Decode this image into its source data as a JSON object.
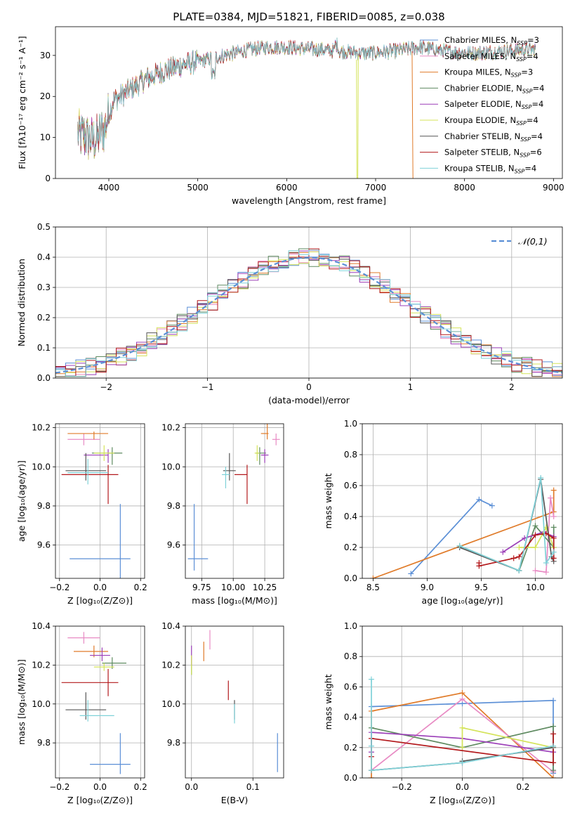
{
  "colors": {
    "Chabrier MILES": "#5b8fd6",
    "Salpeter MILES": "#e88bc4",
    "Kroupa MILES": "#e07b2a",
    "Chabrier ELODIE": "#5e8a60",
    "Salpeter ELODIE": "#9b3fb8",
    "Kroupa ELODIE": "#d4e35a",
    "Chabrier STELIB": "#555555",
    "Salpeter STELIB": "#b3191c",
    "Kroupa STELIB": "#7fd1d8"
  },
  "chart_data": [
    {
      "id": "spectrum",
      "type": "line",
      "title": "PLATE=0384, MJD=51821, FIBERID=0085, z=0.038",
      "xlabel": "wavelength [Angstrom, rest frame]",
      "ylabel": "Flux [fλ10⁻¹⁷ erg cm⁻² s⁻¹ A⁻¹]",
      "xlim": [
        3400,
        9100
      ],
      "ylim": [
        0,
        37
      ],
      "xticks": [
        4000,
        5000,
        6000,
        7000,
        8000,
        9000
      ],
      "yticks": [
        0,
        10,
        20,
        30
      ],
      "grid": false,
      "legend_position": "top-right",
      "legend": [
        "Chabrier MILES, N_SSP=3",
        "Salpeter MILES, N_SSP=4",
        "Kroupa MILES, N_SSP=3",
        "Chabrier ELODIE, N_SSP=4",
        "Salpeter ELODIE, N_SSP=4",
        "Kroupa ELODIE, N_SSP=4",
        "Chabrier STELIB, N_SSP=4",
        "Salpeter STELIB, N_SSP=6",
        "Kroupa STELIB, N_SSP=4"
      ],
      "continuum": [
        [
          3650,
          11
        ],
        [
          3750,
          10
        ],
        [
          3850,
          9.5
        ],
        [
          3950,
          12
        ],
        [
          4050,
          19
        ],
        [
          4200,
          21
        ],
        [
          4400,
          24
        ],
        [
          4600,
          26
        ],
        [
          4800,
          27.5
        ],
        [
          5000,
          28.5
        ],
        [
          5200,
          29.5
        ],
        [
          5400,
          30.5
        ],
        [
          5600,
          31.5
        ],
        [
          5800,
          32
        ],
        [
          6000,
          32
        ],
        [
          6300,
          31.5
        ],
        [
          6600,
          31
        ],
        [
          6900,
          30.5
        ],
        [
          7200,
          31
        ],
        [
          7500,
          32
        ],
        [
          7800,
          31
        ],
        [
          8100,
          30.5
        ],
        [
          8400,
          31
        ],
        [
          8800,
          31.5
        ]
      ]
    },
    {
      "id": "residuals",
      "type": "line",
      "xlabel": "(data-model)/error",
      "ylabel": "Normed distribution",
      "xlim": [
        -2.5,
        2.5
      ],
      "ylim": [
        0,
        0.5
      ],
      "xticks": [
        -2,
        -1,
        0,
        1,
        2
      ],
      "yticks": [
        0.0,
        0.1,
        0.2,
        0.3,
        0.4,
        0.5
      ],
      "grid": true,
      "legend_position": "top-right",
      "legend": [
        "𝒩(0,1)"
      ]
    },
    {
      "id": "age-vs-Z",
      "type": "scatter",
      "xlabel": "Z [log₁₀(Z/Z⊙)]",
      "ylabel": "age  [log₁₀(age/yr)]",
      "xlim": [
        -0.22,
        0.22
      ],
      "ylim": [
        9.43,
        10.22
      ],
      "xticks": [
        -0.2,
        0.0,
        0.2
      ],
      "yticks": [
        9.6,
        9.8,
        10.0,
        10.2
      ],
      "grid": true,
      "points": [
        {
          "model": "Chabrier MILES",
          "x": 0.1,
          "y": 9.53,
          "xerr": [
            0.25,
            0.05
          ],
          "yerr": [
            0.1,
            0.28
          ]
        },
        {
          "model": "Salpeter MILES",
          "x": -0.08,
          "y": 10.14,
          "xerr": [
            0.08,
            0.08
          ],
          "yerr": [
            0.03,
            0.03
          ]
        },
        {
          "model": "Kroupa MILES",
          "x": -0.03,
          "y": 10.17,
          "xerr": [
            0.13,
            0.07
          ],
          "yerr": [
            0.03,
            0.01
          ]
        },
        {
          "model": "Chabrier ELODIE",
          "x": 0.06,
          "y": 10.07,
          "xerr": [
            0.1,
            0.05
          ],
          "yerr": [
            0.06,
            0.03
          ]
        },
        {
          "model": "Salpeter ELODIE",
          "x": 0.04,
          "y": 10.06,
          "xerr": [
            0.12,
            0.0
          ],
          "yerr": [
            0.04,
            0.03
          ]
        },
        {
          "model": "Kroupa ELODIE",
          "x": 0.02,
          "y": 10.07,
          "xerr": [
            0.05,
            0.05
          ],
          "yerr": [
            0.04,
            0.04
          ]
        },
        {
          "model": "Chabrier STELIB",
          "x": -0.07,
          "y": 9.98,
          "xerr": [
            0.1,
            0.1
          ],
          "yerr": [
            0.05,
            0.09
          ]
        },
        {
          "model": "Salpeter STELIB",
          "x": 0.04,
          "y": 9.96,
          "xerr": [
            0.23,
            0.05
          ],
          "yerr": [
            0.15,
            0.05
          ]
        },
        {
          "model": "Kroupa STELIB",
          "x": -0.06,
          "y": 9.97,
          "xerr": [
            0.1,
            0.1
          ],
          "yerr": [
            0.06,
            0.07
          ]
        }
      ]
    },
    {
      "id": "age-vs-mass",
      "type": "scatter",
      "xlabel": "mass [log₁₀(M/M⊙)]",
      "ylabel": "",
      "xlim": [
        9.62,
        10.4
      ],
      "ylim": [
        9.43,
        10.22
      ],
      "xticks": [
        9.75,
        10.0,
        10.25
      ],
      "yticks": [
        9.6,
        9.8,
        10.0,
        10.2
      ],
      "grid": true,
      "points": [
        {
          "model": "Chabrier MILES",
          "x": 9.69,
          "y": 9.53,
          "xerr": [
            0.05,
            0.11
          ],
          "yerr": [
            0.06,
            0.28
          ]
        },
        {
          "model": "Salpeter MILES",
          "x": 10.34,
          "y": 10.14,
          "xerr": [
            0.03,
            0.03
          ],
          "yerr": [
            0.03,
            0.03
          ]
        },
        {
          "model": "Kroupa MILES",
          "x": 10.27,
          "y": 10.17,
          "xerr": [
            0.05,
            0.01
          ],
          "yerr": [
            0.03,
            0.1
          ]
        },
        {
          "model": "Chabrier ELODIE",
          "x": 10.21,
          "y": 10.07,
          "xerr": [
            0.03,
            0.05
          ],
          "yerr": [
            0.06,
            0.03
          ]
        },
        {
          "model": "Salpeter ELODIE",
          "x": 10.25,
          "y": 10.06,
          "xerr": [
            0.03,
            0.03
          ],
          "yerr": [
            0.04,
            0.03
          ]
        },
        {
          "model": "Kroupa ELODIE",
          "x": 10.19,
          "y": 10.07,
          "xerr": [
            0.02,
            0.02
          ],
          "yerr": [
            0.04,
            0.04
          ]
        },
        {
          "model": "Chabrier STELIB",
          "x": 9.97,
          "y": 9.98,
          "xerr": [
            0.05,
            0.05
          ],
          "yerr": [
            0.05,
            0.09
          ]
        },
        {
          "model": "Salpeter STELIB",
          "x": 10.11,
          "y": 9.96,
          "xerr": [
            0.1,
            0.0
          ],
          "yerr": [
            0.15,
            0.05
          ]
        },
        {
          "model": "Kroupa STELIB",
          "x": 9.94,
          "y": 9.96,
          "xerr": [
            0.03,
            0.03
          ],
          "yerr": [
            0.07,
            0.04
          ]
        }
      ]
    },
    {
      "id": "massweight-vs-age",
      "type": "line",
      "xlabel": "age  [log₁₀(age/yr)]",
      "ylabel": "mass weight",
      "xlim": [
        8.4,
        10.25
      ],
      "ylim": [
        0,
        1
      ],
      "xticks": [
        8.5,
        9.0,
        9.5,
        10.0
      ],
      "yticks": [
        0.0,
        0.2,
        0.4,
        0.6,
        0.8,
        1.0
      ],
      "grid": true,
      "series": [
        {
          "model": "Chabrier MILES",
          "x": [
            8.85,
            9.48,
            9.6
          ],
          "y": [
            0.03,
            0.51,
            0.47
          ]
        },
        {
          "model": "Kroupa MILES",
          "x": [
            8.5,
            10.17,
            10.17
          ],
          "y": [
            0.0,
            0.43,
            0.57
          ]
        },
        {
          "model": "Salpeter MILES",
          "x": [
            10.0,
            10.1,
            10.14,
            10.17
          ],
          "y": [
            0.05,
            0.04,
            0.52,
            0.4
          ]
        },
        {
          "model": "Chabrier ELODIE",
          "x": [
            9.3,
            9.85,
            10.0,
            10.17,
            10.17
          ],
          "y": [
            0.21,
            0.05,
            0.34,
            0.2,
            0.33
          ]
        },
        {
          "model": "Salpeter ELODIE",
          "x": [
            9.7,
            9.9,
            10.08,
            10.17
          ],
          "y": [
            0.17,
            0.26,
            0.3,
            0.27
          ]
        },
        {
          "model": "Kroupa ELODIE",
          "x": [
            9.85,
            10.0,
            10.1,
            10.17
          ],
          "y": [
            0.2,
            0.2,
            0.33,
            0.2
          ]
        },
        {
          "model": "Chabrier STELIB",
          "x": [
            9.3,
            9.85,
            10.05,
            10.15,
            10.17
          ],
          "y": [
            0.2,
            0.05,
            0.64,
            0.14,
            0.11
          ]
        },
        {
          "model": "Salpeter STELIB",
          "x": [
            9.48,
            9.48,
            9.8,
            9.85,
            10.0,
            10.1,
            10.17,
            10.17
          ],
          "y": [
            0.1,
            0.08,
            0.13,
            0.14,
            0.28,
            0.29,
            0.26,
            0.13
          ]
        },
        {
          "model": "Kroupa STELIB",
          "x": [
            9.3,
            9.85,
            10.05,
            10.1,
            10.17
          ],
          "y": [
            0.21,
            0.05,
            0.65,
            0.1,
            0.17
          ]
        }
      ]
    },
    {
      "id": "mass-vs-Z",
      "type": "scatter",
      "xlabel": "Z [log₁₀(Z/Z⊙)]",
      "ylabel": "mass [log₁₀(M/M⊙)]",
      "xlim": [
        -0.22,
        0.22
      ],
      "ylim": [
        9.62,
        10.4
      ],
      "xticks": [
        -0.2,
        0.0,
        0.2
      ],
      "yticks": [
        9.8,
        10.0,
        10.2,
        10.4
      ],
      "grid": true,
      "points": [
        {
          "model": "Chabrier MILES",
          "x": 0.1,
          "y": 9.69,
          "xerr": [
            0.15,
            0.05
          ],
          "yerr": [
            0.05,
            0.16
          ]
        },
        {
          "model": "Salpeter MILES",
          "x": -0.08,
          "y": 10.34,
          "xerr": [
            0.08,
            0.08
          ],
          "yerr": [
            0.03,
            0.03
          ]
        },
        {
          "model": "Kroupa MILES",
          "x": -0.03,
          "y": 10.27,
          "xerr": [
            0.1,
            0.07
          ],
          "yerr": [
            0.03,
            0.03
          ]
        },
        {
          "model": "Chabrier ELODIE",
          "x": 0.06,
          "y": 10.21,
          "xerr": [
            0.05,
            0.07
          ],
          "yerr": [
            0.03,
            0.03
          ]
        },
        {
          "model": "Salpeter ELODIE",
          "x": 0.01,
          "y": 10.25,
          "xerr": [
            0.06,
            0.04
          ],
          "yerr": [
            0.03,
            0.04
          ]
        },
        {
          "model": "Kroupa ELODIE",
          "x": 0.02,
          "y": 10.19,
          "xerr": [
            0.05,
            0.05
          ],
          "yerr": [
            0.02,
            0.02
          ]
        },
        {
          "model": "Chabrier STELIB",
          "x": -0.07,
          "y": 9.97,
          "xerr": [
            0.1,
            0.1
          ],
          "yerr": [
            0.05,
            0.09
          ]
        },
        {
          "model": "Salpeter STELIB",
          "x": 0.04,
          "y": 10.11,
          "xerr": [
            0.23,
            0.05
          ],
          "yerr": [
            0.07,
            0.07
          ]
        },
        {
          "model": "Kroupa STELIB",
          "x": -0.06,
          "y": 9.94,
          "xerr": [
            0.04,
            0.13
          ],
          "yerr": [
            0.03,
            0.08
          ]
        }
      ]
    },
    {
      "id": "mass-vs-ebv",
      "type": "scatter",
      "xlabel": "E(B-V)",
      "ylabel": "",
      "xlim": [
        -0.01,
        0.15
      ],
      "ylim": [
        9.62,
        10.4
      ],
      "xticks": [
        0.0,
        0.1
      ],
      "yticks": [
        9.8,
        10.0,
        10.2,
        10.4
      ],
      "grid": true,
      "points": [
        {
          "model": "Chabrier MILES",
          "x": 0.14,
          "y": 9.75,
          "xerr": [
            0,
            0
          ],
          "yerr": [
            0.1,
            0.1
          ]
        },
        {
          "model": "Salpeter MILES",
          "x": 0.03,
          "y": 10.33,
          "xerr": [
            0,
            0
          ],
          "yerr": [
            0.05,
            0.05
          ]
        },
        {
          "model": "Kroupa MILES",
          "x": 0.02,
          "y": 10.27,
          "xerr": [
            0,
            0
          ],
          "yerr": [
            0.05,
            0.05
          ]
        },
        {
          "model": "Chabrier ELODIE",
          "x": 0.0,
          "y": 10.2,
          "xerr": [
            0,
            0
          ],
          "yerr": [
            0.05,
            0.05
          ]
        },
        {
          "model": "Salpeter ELODIE",
          "x": 0.0,
          "y": 10.25,
          "xerr": [
            0,
            0
          ],
          "yerr": [
            0.05,
            0.05
          ]
        },
        {
          "model": "Kroupa ELODIE",
          "x": 0.0,
          "y": 10.2,
          "xerr": [
            0,
            0
          ],
          "yerr": [
            0.05,
            0.05
          ]
        },
        {
          "model": "Chabrier STELIB",
          "x": 0.07,
          "y": 9.97,
          "xerr": [
            0,
            0
          ],
          "yerr": [
            0.05,
            0.05
          ]
        },
        {
          "model": "Salpeter STELIB",
          "x": 0.06,
          "y": 10.07,
          "xerr": [
            0,
            0
          ],
          "yerr": [
            0.05,
            0.05
          ]
        },
        {
          "model": "Kroupa STELIB",
          "x": 0.07,
          "y": 9.95,
          "xerr": [
            0,
            0
          ],
          "yerr": [
            0.05,
            0.05
          ]
        }
      ]
    },
    {
      "id": "massweight-vs-Z",
      "type": "line",
      "xlabel": "Z [log₁₀(Z/Z⊙)]",
      "ylabel": "mass weight",
      "xlim": [
        -0.33,
        0.33
      ],
      "ylim": [
        0,
        1
      ],
      "xticks": [
        -0.2,
        0.0,
        0.2
      ],
      "yticks": [
        0.0,
        0.2,
        0.4,
        0.6,
        0.8,
        1.0
      ],
      "grid": true,
      "series": [
        {
          "model": "Chabrier MILES",
          "x": [
            -0.3,
            0.0,
            0.3,
            0.3
          ],
          "y": [
            0.47,
            0.49,
            0.51,
            0.03
          ]
        },
        {
          "model": "Kroupa MILES",
          "x": [
            -0.3,
            -0.3,
            0.0,
            0.3
          ],
          "y": [
            0.0,
            0.44,
            0.56,
            0.0
          ]
        },
        {
          "model": "Salpeter MILES",
          "x": [
            -0.3,
            0.0,
            0.3,
            0.3
          ],
          "y": [
            0.05,
            0.52,
            0.04,
            0.05
          ]
        },
        {
          "model": "Chabrier ELODIE",
          "x": [
            -0.3,
            0.0,
            0.3,
            0.3
          ],
          "y": [
            0.33,
            0.2,
            0.34,
            0.05
          ]
        },
        {
          "model": "Salpeter ELODIE",
          "x": [
            -0.3,
            -0.3,
            0.0,
            0.3
          ],
          "y": [
            0.17,
            0.3,
            0.26,
            0.17
          ]
        },
        {
          "model": "Kroupa ELODIE",
          "x": [
            0.0,
            0.0,
            0.3
          ],
          "y": [
            0.2,
            0.33,
            0.2
          ]
        },
        {
          "model": "Chabrier STELIB",
          "x": [
            -0.3,
            0.0,
            0.0,
            0.3
          ],
          "y": [
            0.05,
            0.1,
            0.11,
            0.2
          ]
        },
        {
          "model": "Salpeter STELIB",
          "x": [
            -0.3,
            -0.3,
            0.3,
            0.3
          ],
          "y": [
            0.14,
            0.26,
            0.1,
            0.29
          ]
        },
        {
          "model": "Kroupa STELIB",
          "x": [
            -0.3,
            -0.3,
            -0.3,
            0.0,
            0.3
          ],
          "y": [
            0.65,
            0.21,
            0.05,
            0.1,
            0.21
          ]
        }
      ]
    }
  ]
}
